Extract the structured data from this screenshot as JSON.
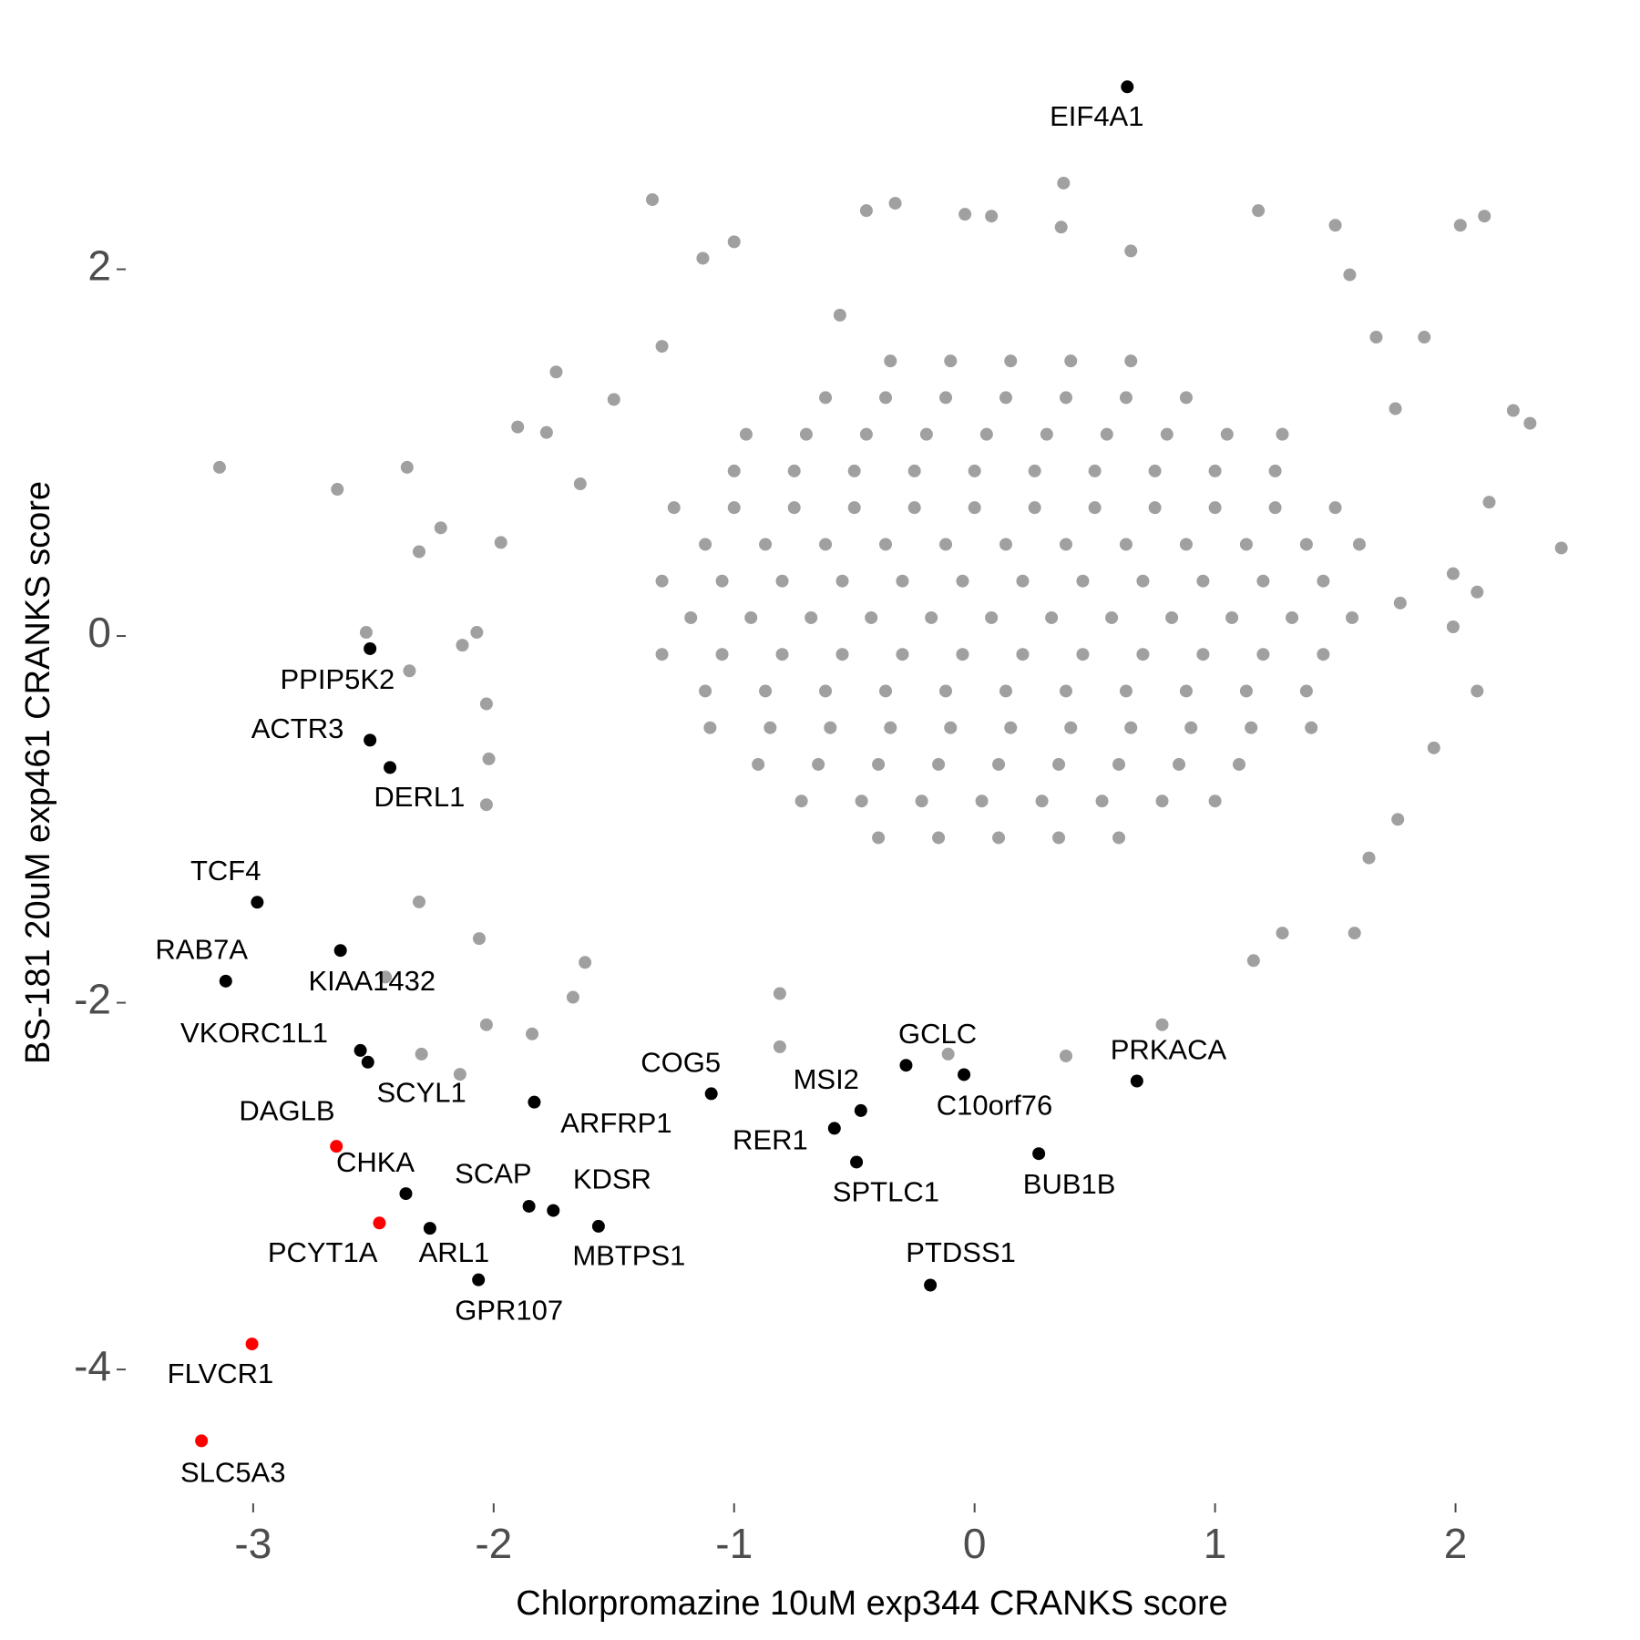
{
  "chart_data": {
    "type": "scatter",
    "x_label": "Chlorpromazine 10uM exp344 CRANKS score",
    "y_label": "BS-181 20uM exp461 CRANKS score",
    "xlim": [
      -3.53,
      2.68
    ],
    "ylim": [
      -4.73,
      3.24
    ],
    "xticks": [
      -3,
      -2,
      -1,
      0,
      1,
      2
    ],
    "yticks": [
      -4,
      -2,
      0,
      2
    ],
    "grid": false,
    "series": [
      {
        "color": "#a0a0a0",
        "x": [
          -3.14,
          -2.65,
          -2.36,
          -2.31,
          -2.22,
          -2.53,
          -2.35,
          -2.31,
          -2.45,
          -2.3,
          -2.14,
          -2.06,
          -2.03,
          -1.84,
          -2.13,
          -2.07,
          -2.03,
          -2.02,
          -2.03,
          -1.97,
          -1.9,
          -1.78,
          -1.74,
          -1.64,
          -1.67,
          -1.62,
          -1.5,
          -1.34,
          -1.3,
          -1.13,
          -1.0,
          -0.81,
          -0.81,
          -0.56,
          -0.45,
          -0.33,
          -0.04,
          0.07,
          0.37,
          0.36,
          0.65,
          1.18,
          1.5,
          1.56,
          2.02,
          2.12,
          2.24,
          2.31,
          2.44,
          2.14,
          2.09,
          2.09,
          1.99,
          1.91,
          1.76,
          1.64,
          1.58,
          1.28,
          1.16,
          0.78,
          0.38,
          -0.11,
          1.87,
          1.75,
          1.67,
          1.99,
          1.77,
          -0.35,
          -0.1,
          0.15,
          0.4,
          0.65,
          -0.62,
          -0.37,
          -0.12,
          0.13,
          0.38,
          0.63,
          0.88,
          -0.95,
          -0.7,
          -0.45,
          -0.2,
          0.05,
          0.3,
          0.55,
          0.8,
          1.05,
          1.28,
          -1.0,
          -0.75,
          -0.5,
          -0.25,
          0,
          0.25,
          0.5,
          0.75,
          1.0,
          1.25,
          -1.25,
          -1.0,
          -0.75,
          -0.5,
          -0.25,
          0,
          0.25,
          0.5,
          0.75,
          1.0,
          1.25,
          1.5,
          -1.12,
          -0.87,
          -0.62,
          -0.37,
          -0.12,
          0.13,
          0.38,
          0.63,
          0.88,
          1.13,
          1.38,
          1.6,
          -1.3,
          -1.05,
          -0.8,
          -0.55,
          -0.3,
          -0.05,
          0.2,
          0.45,
          0.7,
          0.95,
          1.2,
          1.45,
          -1.18,
          -0.93,
          -0.68,
          -0.43,
          -0.18,
          0.07,
          0.32,
          0.57,
          0.82,
          1.07,
          1.32,
          1.57,
          -1.3,
          -1.05,
          -0.8,
          -0.55,
          -0.3,
          -0.05,
          0.2,
          0.45,
          0.7,
          0.95,
          1.2,
          1.45,
          -1.12,
          -0.87,
          -0.62,
          -0.37,
          -0.12,
          0.13,
          0.38,
          0.63,
          0.88,
          1.13,
          1.38,
          -1.1,
          -0.85,
          -0.6,
          -0.35,
          -0.1,
          0.15,
          0.4,
          0.65,
          0.9,
          1.15,
          1.4,
          -0.9,
          -0.65,
          -0.4,
          -0.15,
          0.1,
          0.35,
          0.6,
          0.85,
          1.1,
          -0.72,
          -0.47,
          -0.22,
          0.03,
          0.28,
          0.53,
          0.78,
          1.0,
          -0.4,
          -0.15,
          0.1,
          0.35,
          0.6
        ],
        "values": [
          0.92,
          0.8,
          0.92,
          0.46,
          0.59,
          0.02,
          -0.19,
          -1.45,
          -1.86,
          -2.28,
          -2.39,
          -1.65,
          -2.12,
          -2.17,
          -0.05,
          0.02,
          -0.37,
          -0.67,
          -0.92,
          0.51,
          1.14,
          1.11,
          1.44,
          0.83,
          -1.97,
          -1.78,
          1.29,
          2.38,
          1.58,
          2.06,
          2.15,
          -1.95,
          -2.24,
          1.75,
          2.32,
          2.36,
          2.3,
          2.29,
          2.47,
          2.23,
          2.1,
          2.32,
          2.24,
          1.97,
          2.24,
          2.29,
          1.23,
          1.16,
          0.48,
          0.73,
          0.24,
          -0.3,
          0.05,
          -0.61,
          -1.0,
          -1.21,
          -1.62,
          -1.62,
          -1.77,
          -2.12,
          -2.29,
          -2.28,
          1.63,
          1.24,
          1.63,
          0.34,
          0.18,
          1.5,
          1.5,
          1.5,
          1.5,
          1.5,
          1.3,
          1.3,
          1.3,
          1.3,
          1.3,
          1.3,
          1.3,
          1.1,
          1.1,
          1.1,
          1.1,
          1.1,
          1.1,
          1.1,
          1.1,
          1.1,
          1.1,
          0.9,
          0.9,
          0.9,
          0.9,
          0.9,
          0.9,
          0.9,
          0.9,
          0.9,
          0.9,
          0.7,
          0.7,
          0.7,
          0.7,
          0.7,
          0.7,
          0.7,
          0.7,
          0.7,
          0.7,
          0.7,
          0.7,
          0.5,
          0.5,
          0.5,
          0.5,
          0.5,
          0.5,
          0.5,
          0.5,
          0.5,
          0.5,
          0.5,
          0.5,
          0.3,
          0.3,
          0.3,
          0.3,
          0.3,
          0.3,
          0.3,
          0.3,
          0.3,
          0.3,
          0.3,
          0.3,
          0.1,
          0.1,
          0.1,
          0.1,
          0.1,
          0.1,
          0.1,
          0.1,
          0.1,
          0.1,
          0.1,
          0.1,
          -0.1,
          -0.1,
          -0.1,
          -0.1,
          -0.1,
          -0.1,
          -0.1,
          -0.1,
          -0.1,
          -0.1,
          -0.1,
          -0.1,
          -0.3,
          -0.3,
          -0.3,
          -0.3,
          -0.3,
          -0.3,
          -0.3,
          -0.3,
          -0.3,
          -0.3,
          -0.3,
          -0.5,
          -0.5,
          -0.5,
          -0.5,
          -0.5,
          -0.5,
          -0.5,
          -0.5,
          -0.5,
          -0.5,
          -0.5,
          -0.7,
          -0.7,
          -0.7,
          -0.7,
          -0.7,
          -0.7,
          -0.7,
          -0.7,
          -0.7,
          -0.9,
          -0.9,
          -0.9,
          -0.9,
          -0.9,
          -0.9,
          -0.9,
          -0.9,
          -1.1,
          -1.1,
          -1.1,
          -1.1,
          -1.1
        ]
      },
      {
        "color": "#000000",
        "labels": [
          "EIF4A1",
          "PPIP5K2",
          "ACTR3",
          "DERL1",
          "TCF4",
          "KIAA1432",
          "RAB7A",
          "VKORC1L1",
          "SCYL1",
          "CHKA",
          "ARL1",
          "GPR107",
          "SCAP",
          "KDSR",
          "MBTPS1",
          "ARFRP1",
          "COG5",
          "MSI2",
          "RER1",
          "SPTLC1",
          "GCLC",
          "C10orf76",
          "PRKACA",
          "BUB1B",
          "PTDSS1"
        ],
        "x": [
          0.635,
          -2.514,
          -2.514,
          -2.431,
          -2.983,
          -2.637,
          -3.114,
          -2.554,
          -2.523,
          -2.365,
          -2.265,
          -2.063,
          -1.853,
          -1.752,
          -1.564,
          -1.831,
          -1.095,
          -0.473,
          -0.583,
          -0.491,
          -0.285,
          -0.044,
          0.675,
          0.267,
          -0.184
        ],
        "values": [
          2.995,
          -0.069,
          -0.568,
          -0.717,
          -1.452,
          -1.715,
          -1.882,
          -2.26,
          -2.324,
          -3.041,
          -3.23,
          -3.511,
          -3.11,
          -3.133,
          -3.219,
          -2.542,
          -2.496,
          -2.588,
          -2.685,
          -2.869,
          -2.341,
          -2.392,
          -2.427,
          -2.823,
          -3.54
        ]
      },
      {
        "color": "#ff0000",
        "labels": [
          "DAGLB",
          "PCYT1A",
          "FLVCR1",
          "SLC5A3"
        ],
        "x": [
          -2.654,
          -2.475,
          -3.005,
          -3.215
        ],
        "values": [
          -2.783,
          -3.201,
          -3.861,
          -4.389
        ]
      }
    ]
  }
}
